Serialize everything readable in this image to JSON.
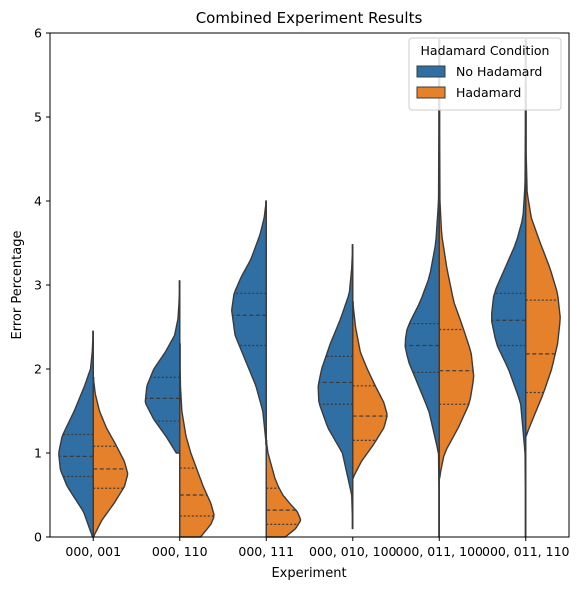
{
  "chart_data": {
    "type": "violin",
    "title": "Combined Experiment Results",
    "xlabel": "Experiment",
    "ylabel": "Error Percentage",
    "ylim": [
      0,
      6
    ],
    "yticks": [
      0,
      1,
      2,
      3,
      4,
      5,
      6
    ],
    "split": true,
    "inner": "quartile",
    "grid": false,
    "categories": [
      "000, 001",
      "000, 110",
      "000, 111",
      "000, 010, 100",
      "000, 011, 100",
      "000, 011, 110"
    ],
    "legend": {
      "title": "Hadamard Condition",
      "placement": "top-right"
    },
    "colors": {
      "No Hadamard": "#2f6fa4",
      "Hadamard": "#e5802b",
      "outline": "#3b3b3b"
    },
    "series": [
      {
        "name": "No Hadamard",
        "side": "left",
        "violins": [
          {
            "min": 0.0,
            "max": 2.45,
            "quartiles": [
              0.72,
              0.96,
              1.22
            ],
            "profile": [
              [
                0.0,
                0.02
              ],
              [
                0.3,
                0.28
              ],
              [
                0.6,
                0.75
              ],
              [
                0.8,
                0.95
              ],
              [
                1.0,
                1.0
              ],
              [
                1.2,
                0.9
              ],
              [
                1.5,
                0.55
              ],
              [
                1.8,
                0.25
              ],
              [
                2.0,
                0.08
              ],
              [
                2.2,
                0.03
              ],
              [
                2.45,
                0.0
              ]
            ]
          },
          {
            "min": 1.0,
            "max": 3.05,
            "quartiles": [
              1.38,
              1.65,
              1.9
            ],
            "profile": [
              [
                1.0,
                0.1
              ],
              [
                1.2,
                0.4
              ],
              [
                1.4,
                0.75
              ],
              [
                1.6,
                1.0
              ],
              [
                1.8,
                0.95
              ],
              [
                2.0,
                0.75
              ],
              [
                2.2,
                0.42
              ],
              [
                2.4,
                0.15
              ],
              [
                2.6,
                0.05
              ],
              [
                2.8,
                0.02
              ],
              [
                3.05,
                0.0
              ]
            ]
          },
          {
            "min": 1.1,
            "max": 4.0,
            "quartiles": [
              2.28,
              2.64,
              2.9
            ],
            "profile": [
              [
                1.1,
                0.0
              ],
              [
                1.5,
                0.1
              ],
              [
                1.8,
                0.3
              ],
              [
                2.1,
                0.6
              ],
              [
                2.4,
                0.9
              ],
              [
                2.7,
                1.0
              ],
              [
                2.9,
                0.93
              ],
              [
                3.1,
                0.72
              ],
              [
                3.3,
                0.45
              ],
              [
                3.6,
                0.18
              ],
              [
                3.8,
                0.06
              ],
              [
                4.0,
                0.0
              ]
            ]
          },
          {
            "min": 0.1,
            "max": 3.48,
            "quartiles": [
              1.58,
              1.84,
              2.15
            ],
            "profile": [
              [
                0.1,
                0.0
              ],
              [
                0.5,
                0.03
              ],
              [
                1.0,
                0.3
              ],
              [
                1.3,
                0.72
              ],
              [
                1.6,
                0.98
              ],
              [
                1.8,
                1.0
              ],
              [
                2.0,
                0.9
              ],
              [
                2.3,
                0.65
              ],
              [
                2.6,
                0.35
              ],
              [
                2.9,
                0.1
              ],
              [
                3.2,
                0.03
              ],
              [
                3.48,
                0.0
              ]
            ]
          },
          {
            "min": 0.0,
            "max": 5.92,
            "quartiles": [
              1.96,
              2.28,
              2.54
            ],
            "profile": [
              [
                0.0,
                0.0
              ],
              [
                1.0,
                0.02
              ],
              [
                1.5,
                0.3
              ],
              [
                1.8,
                0.6
              ],
              [
                2.1,
                0.9
              ],
              [
                2.3,
                1.0
              ],
              [
                2.5,
                0.92
              ],
              [
                2.8,
                0.55
              ],
              [
                3.1,
                0.28
              ],
              [
                3.5,
                0.1
              ],
              [
                4.0,
                0.02
              ],
              [
                5.0,
                0.01
              ],
              [
                5.92,
                0.0
              ]
            ]
          },
          {
            "min": 0.0,
            "max": 5.92,
            "quartiles": [
              2.28,
              2.58,
              2.9
            ],
            "profile": [
              [
                0.0,
                0.0
              ],
              [
                1.0,
                0.02
              ],
              [
                1.6,
                0.15
              ],
              [
                2.0,
                0.5
              ],
              [
                2.3,
                0.85
              ],
              [
                2.6,
                1.0
              ],
              [
                2.9,
                0.92
              ],
              [
                3.2,
                0.6
              ],
              [
                3.5,
                0.28
              ],
              [
                3.8,
                0.08
              ],
              [
                4.2,
                0.02
              ],
              [
                5.0,
                0.01
              ],
              [
                5.92,
                0.0
              ]
            ]
          }
        ]
      },
      {
        "name": "Hadamard",
        "side": "right",
        "violins": [
          {
            "min": 0.0,
            "max": 1.9,
            "quartiles": [
              0.58,
              0.81,
              1.08
            ],
            "profile": [
              [
                0.0,
                0.0
              ],
              [
                0.2,
                0.25
              ],
              [
                0.4,
                0.6
              ],
              [
                0.6,
                0.9
              ],
              [
                0.75,
                1.0
              ],
              [
                0.9,
                0.9
              ],
              [
                1.1,
                0.65
              ],
              [
                1.3,
                0.38
              ],
              [
                1.5,
                0.18
              ],
              [
                1.7,
                0.06
              ],
              [
                1.9,
                0.0
              ]
            ]
          },
          {
            "min": 0.0,
            "max": 2.3,
            "quartiles": [
              0.25,
              0.5,
              0.82
            ],
            "profile": [
              [
                0.0,
                0.6
              ],
              [
                0.15,
                0.9
              ],
              [
                0.25,
                1.0
              ],
              [
                0.4,
                0.9
              ],
              [
                0.6,
                0.68
              ],
              [
                0.8,
                0.5
              ],
              [
                1.0,
                0.32
              ],
              [
                1.2,
                0.18
              ],
              [
                1.5,
                0.06
              ],
              [
                1.8,
                0.02
              ],
              [
                2.3,
                0.0
              ]
            ]
          },
          {
            "min": 0.0,
            "max": 1.15,
            "quartiles": [
              0.15,
              0.32,
              0.58
            ],
            "profile": [
              [
                0.0,
                0.55
              ],
              [
                0.1,
                0.85
              ],
              [
                0.2,
                1.0
              ],
              [
                0.3,
                0.9
              ],
              [
                0.4,
                0.68
              ],
              [
                0.5,
                0.48
              ],
              [
                0.6,
                0.35
              ],
              [
                0.7,
                0.25
              ],
              [
                0.85,
                0.15
              ],
              [
                1.0,
                0.05
              ],
              [
                1.15,
                0.0
              ]
            ]
          },
          {
            "min": 0.7,
            "max": 2.8,
            "quartiles": [
              1.15,
              1.44,
              1.8
            ],
            "profile": [
              [
                0.7,
                0.0
              ],
              [
                0.9,
                0.25
              ],
              [
                1.1,
                0.6
              ],
              [
                1.3,
                0.9
              ],
              [
                1.45,
                1.0
              ],
              [
                1.6,
                0.9
              ],
              [
                1.8,
                0.65
              ],
              [
                2.0,
                0.42
              ],
              [
                2.2,
                0.22
              ],
              [
                2.5,
                0.08
              ],
              [
                2.8,
                0.0
              ]
            ]
          },
          {
            "min": 0.7,
            "max": 5.92,
            "quartiles": [
              1.58,
              1.98,
              2.47
            ],
            "profile": [
              [
                0.7,
                0.0
              ],
              [
                1.0,
                0.15
              ],
              [
                1.3,
                0.55
              ],
              [
                1.6,
                0.88
              ],
              [
                1.9,
                1.0
              ],
              [
                2.2,
                0.92
              ],
              [
                2.5,
                0.68
              ],
              [
                2.8,
                0.42
              ],
              [
                3.2,
                0.22
              ],
              [
                3.6,
                0.07
              ],
              [
                4.0,
                0.02
              ],
              [
                5.0,
                0.01
              ],
              [
                5.92,
                0.0
              ]
            ]
          },
          {
            "min": 1.2,
            "max": 5.92,
            "quartiles": [
              1.72,
              2.18,
              2.82
            ],
            "profile": [
              [
                1.2,
                0.0
              ],
              [
                1.4,
                0.2
              ],
              [
                1.7,
                0.5
              ],
              [
                2.0,
                0.75
              ],
              [
                2.3,
                0.92
              ],
              [
                2.6,
                1.0
              ],
              [
                2.9,
                0.92
              ],
              [
                3.2,
                0.7
              ],
              [
                3.5,
                0.42
              ],
              [
                3.8,
                0.16
              ],
              [
                4.1,
                0.04
              ],
              [
                4.6,
                0.01
              ],
              [
                5.92,
                0.0
              ]
            ]
          }
        ]
      }
    ]
  }
}
